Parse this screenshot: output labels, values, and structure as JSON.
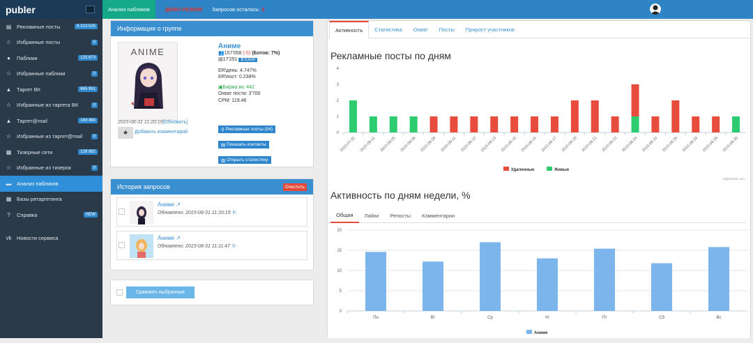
{
  "sidebar": {
    "logo": "publer",
    "items": [
      {
        "icon": "▤",
        "label": "Рекламные посты",
        "badge": "6 313 525"
      },
      {
        "icon": "☆",
        "label": "Избранные посты",
        "badge": "0"
      },
      {
        "icon": "●",
        "label": "Паблики",
        "badge": "125 673"
      },
      {
        "icon": "☆",
        "label": "Избранные паблики",
        "badge": "0"
      },
      {
        "icon": "▲",
        "label": "Таргет ВК",
        "badge": "665 951"
      },
      {
        "icon": "☆",
        "label": "Избранные из таргета ВК",
        "badge": "0"
      },
      {
        "icon": "▲",
        "label": "Таргет@mail",
        "badge": "164 464"
      },
      {
        "icon": "☆",
        "label": "Избранные из таргет@mail",
        "badge": "0"
      },
      {
        "icon": "▦",
        "label": "Тизерные сети",
        "badge": "128 882"
      },
      {
        "icon": "☆",
        "label": "Избранные из тизерок",
        "badge": "0"
      },
      {
        "icon": "▬",
        "label": "Анализ пабликов",
        "badge": ""
      },
      {
        "icon": "▦",
        "label": "Базы ретаргетинга",
        "badge": ""
      },
      {
        "icon": "?",
        "label": "Справка",
        "badge": "NEW"
      },
      {
        "icon": "vk",
        "label": "Новости сервиса",
        "badge": ""
      }
    ]
  },
  "topbar": {
    "active_tab": "Анализ пабликов",
    "blurred_text": "ДЕМО-РЕЖИМ",
    "quota_label": "Запросов осталось:",
    "quota_value": "3"
  },
  "info": {
    "title": "Информация о группе",
    "thumb_title": "ANIME",
    "name": "Аниме",
    "members": "157'058",
    "delta": "(-5)",
    "bots": "(Ботов: 7%)",
    "posts": "17'251",
    "excel": "В Excel",
    "er_day": "ER\\день: 4.747%",
    "er_post": "ER\\пост: 0.238%",
    "exchange": "Биржа вк: 442",
    "reach": "Охват поста: 3'700",
    "cpm": "CPM: 119.46",
    "date": "2015-08-31 11:20:19",
    "refresh": "[Обновить]",
    "add_comment": "Добавить комментарий",
    "btn_posts": "Рекламные посты (54)",
    "btn_contacts": "Показать контакты",
    "btn_stats": "Открыть статистику"
  },
  "history": {
    "title": "История запросов",
    "clear": "Очистить",
    "items": [
      {
        "name": "Аниме",
        "updated": "Обновлено: 2015-08-31 11:20:19"
      },
      {
        "name": "Аниме",
        "updated": "Обновлено: 2015-08-31 11:11:47"
      }
    ],
    "compare": "Сравнить выбранные"
  },
  "tabs": [
    "Активность",
    "Статистика",
    "Охват",
    "Посты",
    "Прирост участников"
  ],
  "chart1": {
    "title": "Рекламные посты по дням",
    "credit": "Highcharts.com"
  },
  "chart2": {
    "title": "Активность по дням недели, %",
    "tabs": [
      "Общая",
      "Лайки",
      "Репосты",
      "Комментарии"
    ]
  },
  "chart_data": [
    {
      "type": "bar",
      "title": "Рекламные посты по дням",
      "stacked": true,
      "categories": [
        "2015-07-31",
        "2015-08-01",
        "2015-08-05",
        "2015-08-06",
        "2015-08-08",
        "2015-08-11",
        "2015-08-12",
        "2015-08-13",
        "2015-08-15",
        "2015-08-16",
        "2015-08-17",
        "2015-08-19",
        "2015-08-21",
        "2015-08-22",
        "2015-08-23",
        "2015-08-24",
        "2015-08-26",
        "2015-08-28",
        "2015-08-29",
        "2015-08-30"
      ],
      "series": [
        {
          "name": "Живые",
          "color": "#2ecc71",
          "values": [
            2,
            1,
            1,
            1,
            0,
            0,
            0,
            0,
            0,
            0,
            0,
            0,
            0,
            0,
            1,
            0,
            0,
            0,
            0,
            1
          ]
        },
        {
          "name": "Удаленные",
          "color": "#e74c3c",
          "values": [
            0,
            0,
            0,
            0,
            1,
            1,
            1,
            1,
            1,
            1,
            1,
            2,
            2,
            1,
            2,
            1,
            2,
            1,
            1,
            0
          ]
        }
      ],
      "ylim": [
        0,
        4
      ],
      "yticks": [
        0,
        1,
        2,
        3,
        4
      ],
      "legend": [
        {
          "name": "Удаленные",
          "color": "#e74c3c"
        },
        {
          "name": "Живые",
          "color": "#2ecc71"
        }
      ]
    },
    {
      "type": "bar",
      "title": "Активность по дням недели, %",
      "categories": [
        "Пн",
        "Вт",
        "Ср",
        "Чт",
        "Пт",
        "Сб",
        "Вс"
      ],
      "series": [
        {
          "name": "Аниме",
          "color": "#7cb5ec",
          "values": [
            14.6,
            12.2,
            17.0,
            13.0,
            15.4,
            11.8,
            15.8
          ]
        }
      ],
      "ylim": [
        0,
        20
      ],
      "yticks": [
        0,
        5,
        10,
        15,
        20
      ],
      "legend": [
        {
          "name": "Аниме",
          "color": "#7cb5ec"
        }
      ]
    }
  ]
}
